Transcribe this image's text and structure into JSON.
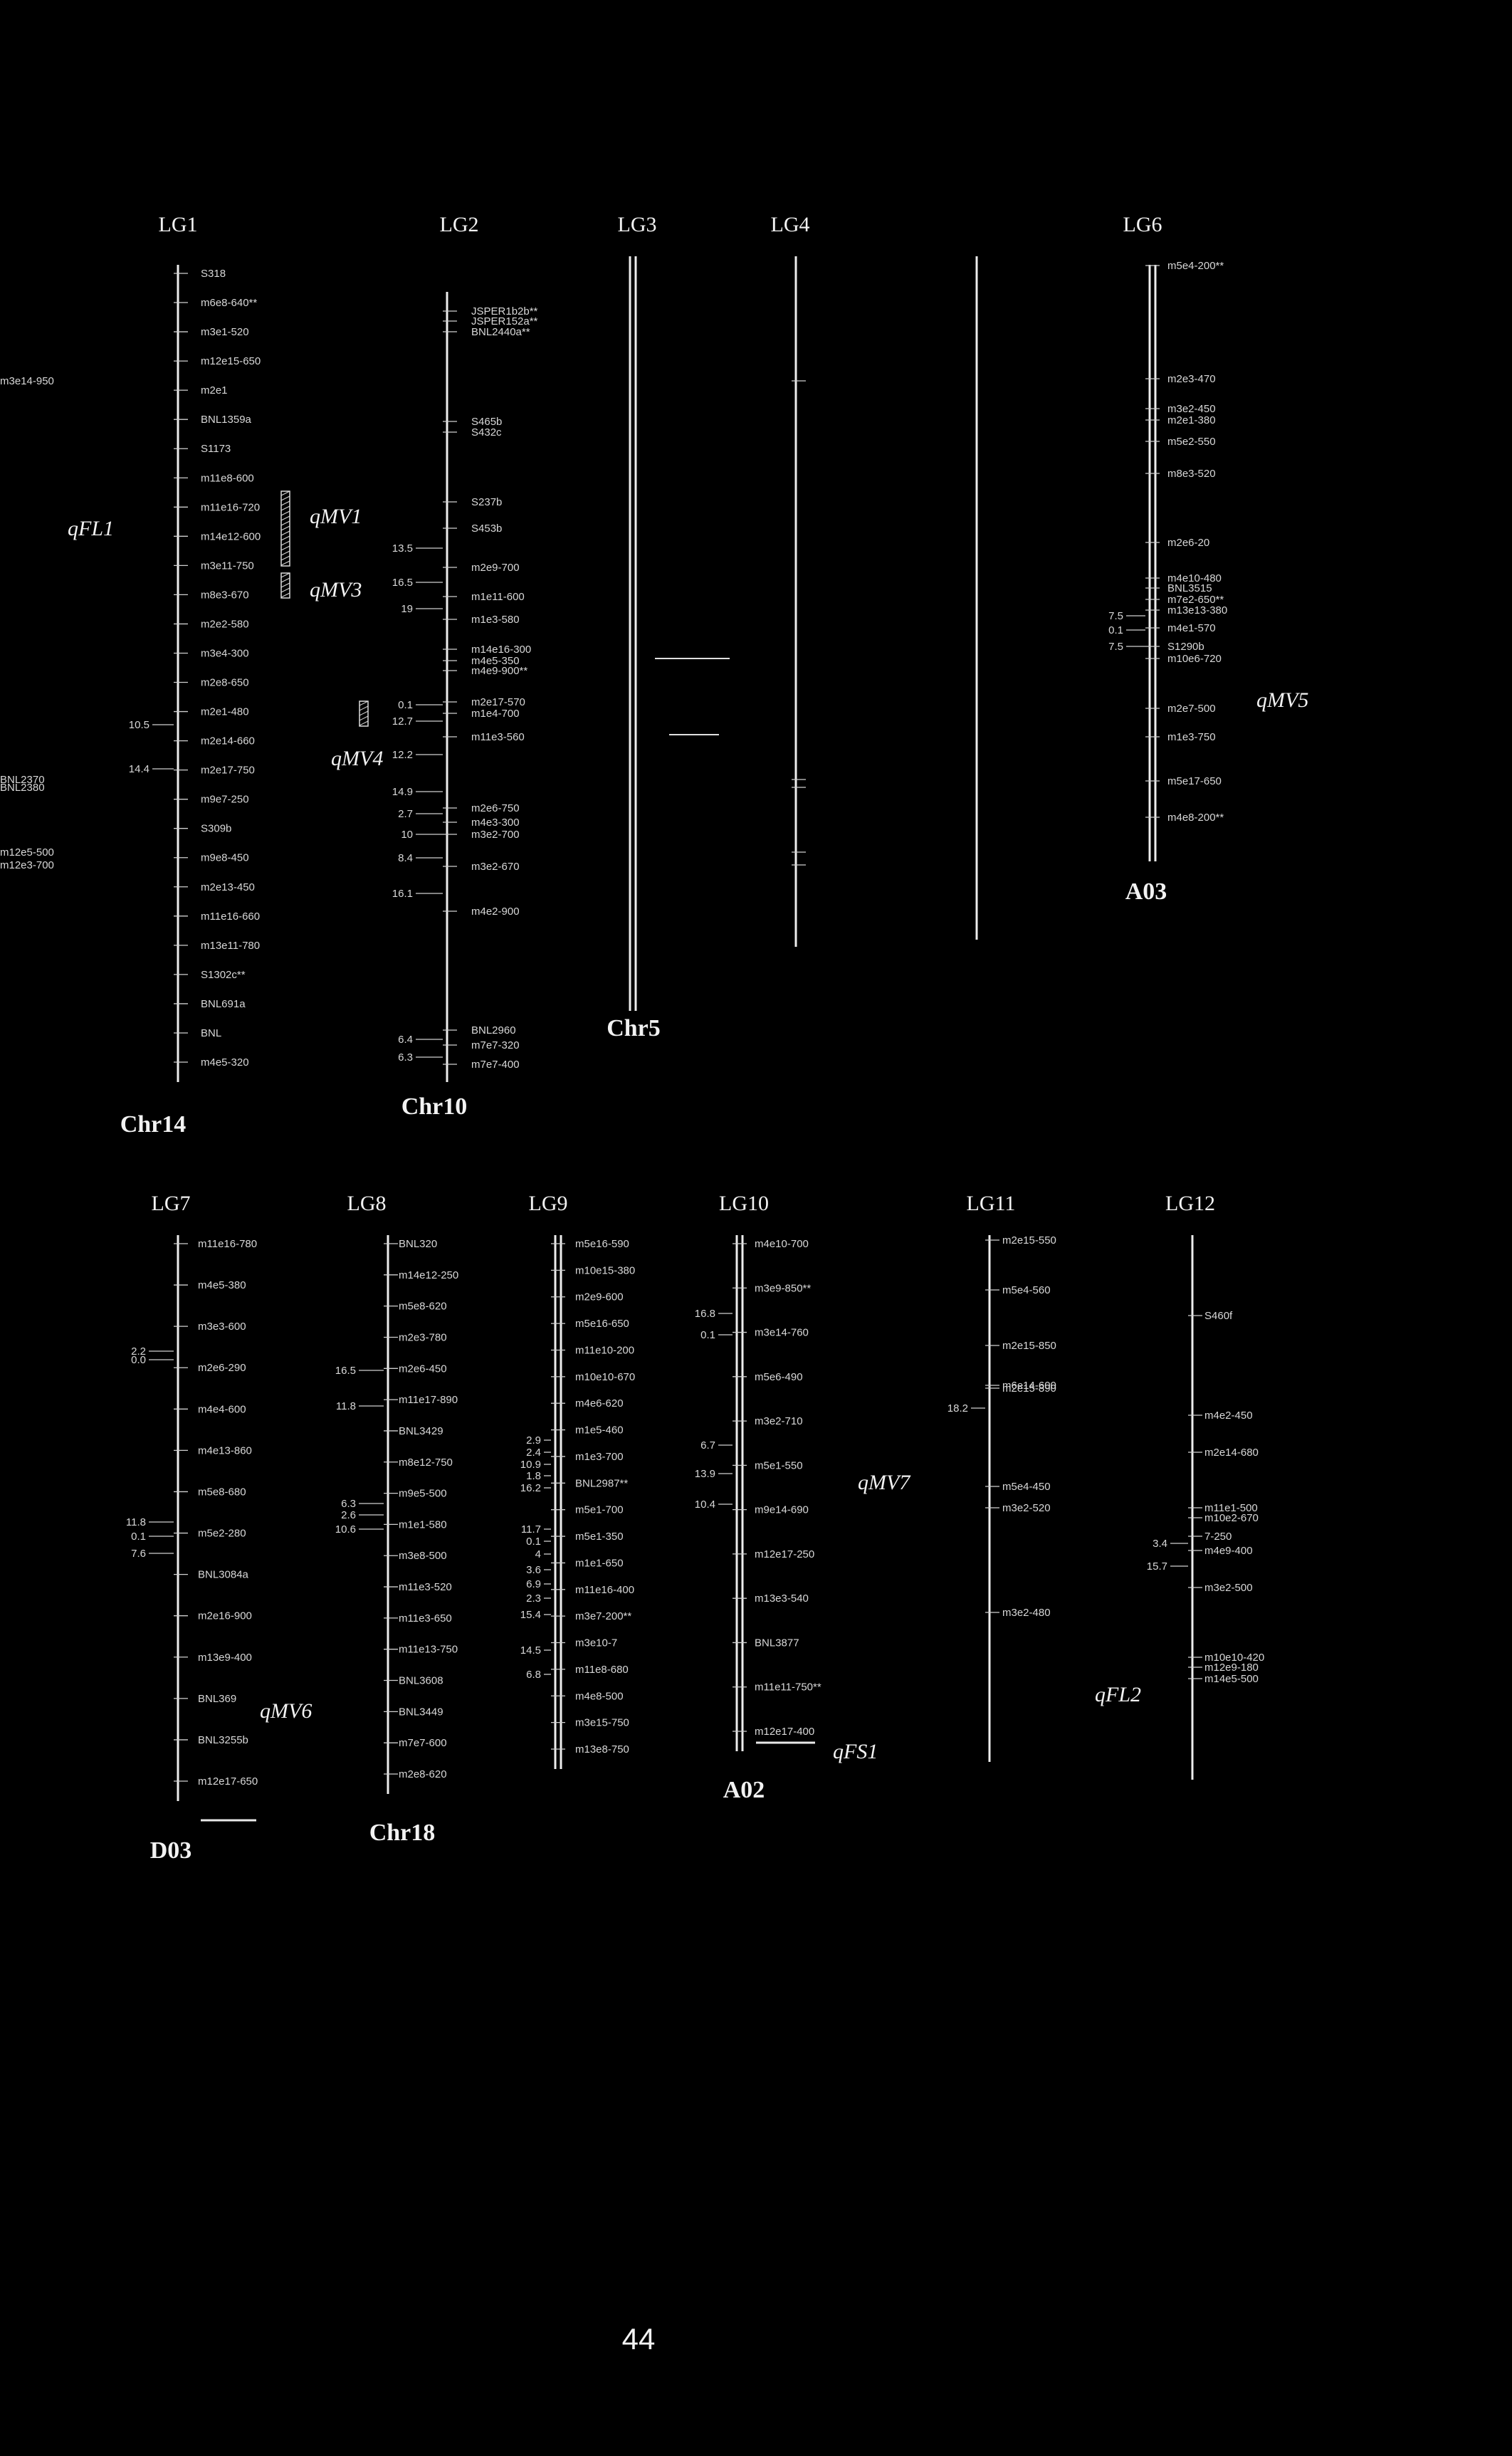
{
  "page_number": "44",
  "linkage_groups": [
    {
      "id": "LG1",
      "label": "LG1",
      "chromosome": "Chr14",
      "qtl": [
        "qFL1",
        "qMV1",
        "qMV3",
        "qMV4"
      ],
      "markers": [
        "S318",
        "m6e8-640**",
        "m3e1-520",
        "m12e15-650",
        "m2e1",
        "BNL1359a",
        "S1173",
        "m11e8-600",
        "m11e16-720",
        "m14e12-600",
        "m3e11-750",
        "m8e3-670",
        "m2e2-580",
        "m3e4-300",
        "m2e8-650",
        "m2e1-480",
        "m2e14-660",
        "m2e17-750",
        "m9e7-250",
        "S309b",
        "m9e8-450",
        "m2e13-450",
        "m11e16-660",
        "m13e11-780",
        "S1302c**",
        "BNL691a",
        "BNL",
        "m4e5-320"
      ],
      "distances": [
        "10.5",
        "14.4"
      ]
    },
    {
      "id": "LG2",
      "label": "LG2",
      "chromosome": "Chr10",
      "markers": [
        "JSPER1b2b**",
        "JSPER152a**",
        "BNL2440a**",
        "S465b",
        "S432c",
        "S237b",
        "S453b",
        "m2e9-700",
        "m1e11-600",
        "m1e3-580",
        "m14e16-300",
        "m4e5-350",
        "m4e9-900**",
        "m2e17-570",
        "m1e4-700",
        "m11e3-560",
        "m2e6-750",
        "m4e3-300",
        "m3e2-700",
        "m3e2-670",
        "m4e2-900",
        "BNL2960",
        "m7e7-320",
        "m7e7-400"
      ],
      "distances": [
        "13.5",
        "16.5",
        "19",
        "0.1",
        "12.7",
        "12.2",
        "14.9",
        "2.7",
        "10",
        "8.4",
        "16.1",
        "6.4",
        "6.3"
      ]
    },
    {
      "id": "LG3",
      "label": "LG3",
      "chromosome": "Chr5",
      "markers": [],
      "distances": []
    },
    {
      "id": "LG4",
      "label": "LG4",
      "markers": [
        "m3e14-950",
        "BNL2370",
        "BNL2380",
        "m12e5-500",
        "m12e3-700"
      ],
      "distances": []
    },
    {
      "id": "LG6",
      "label": "LG6",
      "chromosome": "A03",
      "qtl": [
        "qMV5"
      ],
      "markers": [
        "m5e4-200**",
        "m2e3-470",
        "m3e2-450",
        "m2e1-380",
        "m5e2-550",
        "m8e3-520",
        "m2e6-20",
        "m4e10-480",
        "BNL3515",
        "m7e2-650**",
        "m13e13-380",
        "m4e1-570",
        "S1290b",
        "m10e6-720",
        "m2e7-500",
        "m1e3-750",
        "m5e17-650",
        "m4e8-200**"
      ],
      "distances": [
        "7.5",
        "0.1",
        "7.5"
      ]
    },
    {
      "id": "LG7",
      "label": "LG7",
      "chromosome": "D03",
      "qtl": [
        "qMV6"
      ],
      "markers": [
        "m11e16-780",
        "m4e5-380",
        "m3e3-600",
        "m2e6-290",
        "m4e4-600",
        "m4e13-860",
        "m5e8-680",
        "m5e2-280",
        "BNL3084a",
        "m2e16-900",
        "m13e9-400",
        "BNL369",
        "BNL3255b",
        "m12e17-650"
      ],
      "distances": [
        "2.2",
        "0.0",
        "11.8",
        "0.1",
        "7.6"
      ]
    },
    {
      "id": "LG8",
      "label": "LG8",
      "chromosome": "Chr18",
      "markers": [
        "BNL320",
        "m14e12-250",
        "m5e8-620",
        "m2e3-780",
        "m2e6-450",
        "m11e17-890",
        "BNL3429",
        "m8e12-750",
        "m9e5-500",
        "m1e1-580",
        "m3e8-500",
        "m11e3-520",
        "m11e3-650",
        "m11e13-750",
        "BNL3608",
        "BNL3449",
        "m7e7-600",
        "m2e8-620"
      ],
      "distances": [
        "16.5",
        "11.8",
        "6.3",
        "2.6",
        "10.6"
      ]
    },
    {
      "id": "LG9",
      "label": "LG9",
      "markers": [
        "m5e16-590",
        "m10e15-380",
        "m2e9-600",
        "m5e16-650",
        "m11e10-200",
        "m10e10-670",
        "m4e6-620",
        "m1e5-460",
        "m1e3-700",
        "BNL2987**",
        "m5e1-700",
        "m5e1-350",
        "m1e1-650",
        "m11e16-400",
        "m3e7-200**",
        "m3e10-7",
        "m11e8-680",
        "m4e8-500",
        "m3e15-750",
        "m13e8-750"
      ],
      "distances": [
        "2.9",
        "2.4",
        "10.9",
        "1.8",
        "16.2",
        "11.7",
        "0.1",
        "4",
        "3.6",
        "6.9",
        "2.3",
        "15.4",
        "14.5",
        "6.8"
      ]
    },
    {
      "id": "LG10",
      "label": "LG10",
      "chromosome": "A02",
      "qtl": [
        "qMV7",
        "qFS1"
      ],
      "markers": [
        "m4e10-700",
        "m3e9-850**",
        "m3e14-760",
        "m5e6-490",
        "m3e2-710",
        "m5e1-550",
        "m9e14-690",
        "m12e17-250",
        "m13e3-540",
        "BNL3877",
        "m11e11-750**",
        "m12e17-400"
      ],
      "distances": [
        "16.8",
        "0.1",
        "6.7",
        "13.9",
        "10.4"
      ]
    },
    {
      "id": "LG11",
      "label": "LG11",
      "markers": [
        "m2e15-550",
        "m5e4-560",
        "m2e15-850",
        "m6e14-600",
        "m2e15-890",
        "m5e4-450",
        "m3e2-520",
        "m3e2-480"
      ],
      "distances": [
        "18.2"
      ]
    },
    {
      "id": "LG12",
      "label": "LG12",
      "qtl": [
        "qFL2"
      ],
      "markers": [
        "S460f",
        "m4e2-450",
        "m2e14-680",
        "m11e1-500",
        "m10e2-670",
        "7-250",
        "m4e9-400",
        "m3e2-500",
        "m10e10-420",
        "m12e9-180",
        "m14e5-500"
      ],
      "distances": [
        "3.4",
        "15.7"
      ]
    }
  ]
}
